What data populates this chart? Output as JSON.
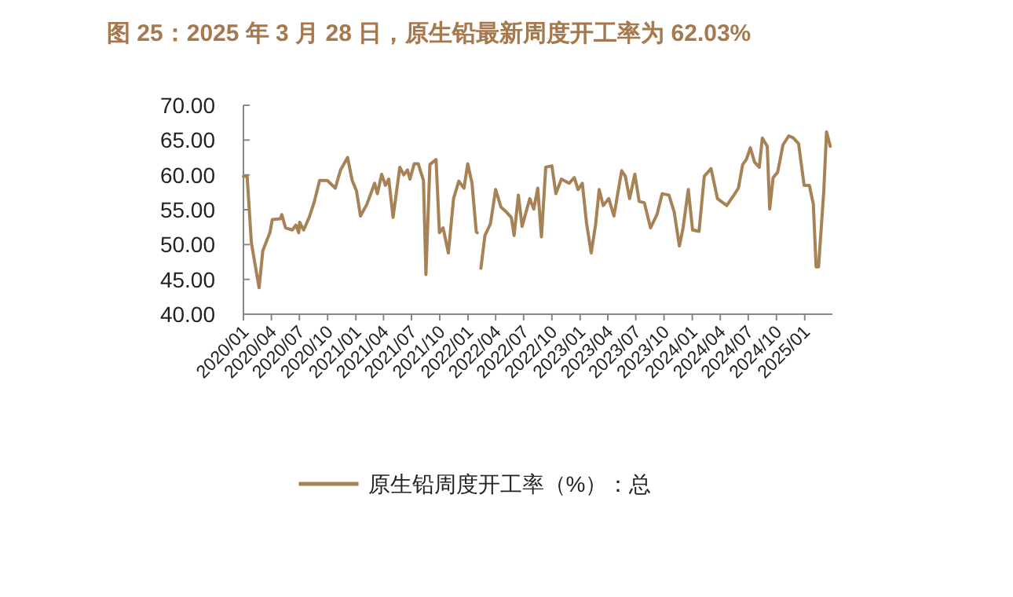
{
  "chart_data": {
    "type": "line",
    "title": "图 25：2025 年 3 月 28 日，原生铅最新周度开工率为 62.03%",
    "x": [
      "2020-01-01",
      "2020-01-13",
      "2020-01-27",
      "2020-02-21",
      "2020-03-04",
      "2020-03-27",
      "2020-04-04",
      "2020-04-30",
      "2020-05-05",
      "2020-05-17",
      "2020-06-08",
      "2020-06-20",
      "2020-06-29",
      "2020-07-02",
      "2020-07-15",
      "2020-08-02",
      "2020-08-19",
      "2020-09-05",
      "2020-09-30",
      "2020-10-26",
      "2020-11-12",
      "2020-12-05",
      "2020-12-20",
      "2021-01-03",
      "2021-01-16",
      "2021-02-06",
      "2021-03-03",
      "2021-03-12",
      "2021-03-26",
      "2021-04-07",
      "2021-04-18",
      "2021-05-02",
      "2021-05-24",
      "2021-06-06",
      "2021-06-18",
      "2021-06-26",
      "2021-07-10",
      "2021-07-23",
      "2021-08-09",
      "2021-08-17",
      "2021-08-30",
      "2021-09-19",
      "2021-09-30",
      "2021-10-12",
      "2021-10-29",
      "2021-11-15",
      "2021-12-02",
      "2021-12-19",
      "2021-12-31",
      "2022-01-14",
      "2022-01-28",
      "2022-01-31",
      "2022-02-05",
      "2022-02-12",
      "2022-02-25",
      "2022-03-15",
      "2022-04-01",
      "2022-04-18",
      "2022-05-05",
      "2022-05-22",
      "2022-05-31",
      "2022-06-14",
      "2022-06-26",
      "2022-07-21",
      "2022-08-03",
      "2022-08-16",
      "2022-08-28",
      "2022-09-11",
      "2022-10-01",
      "2022-10-14",
      "2022-11-01",
      "2022-11-26",
      "2022-12-13",
      "2022-12-25",
      "2023-01-08",
      "2023-01-22",
      "2023-02-06",
      "2023-02-20",
      "2023-03-04",
      "2023-03-17",
      "2023-04-04",
      "2023-04-21",
      "2023-05-16",
      "2023-05-28",
      "2023-06-11",
      "2023-06-28",
      "2023-07-12",
      "2023-07-29",
      "2023-08-18",
      "2023-09-08",
      "2023-09-25",
      "2023-10-17",
      "2023-11-03",
      "2023-11-20",
      "2023-12-02",
      "2023-12-19",
      "2024-01-02",
      "2024-01-23",
      "2024-02-09",
      "2024-03-02",
      "2024-03-23",
      "2024-04-22",
      "2024-05-14",
      "2024-05-30",
      "2024-06-13",
      "2024-06-25",
      "2024-07-08",
      "2024-07-22",
      "2024-08-06",
      "2024-08-16",
      "2024-09-01",
      "2024-09-09",
      "2024-09-20",
      "2024-10-05",
      "2024-10-22",
      "2024-11-10",
      "2024-11-25",
      "2024-12-12",
      "2024-12-30",
      "2025-01-16",
      "2025-01-29",
      "2025-02-07",
      "2025-02-15",
      "2025-03-04",
      "2025-03-13",
      "2025-03-25"
    ],
    "series": [
      {
        "name": "原生铅周度开工率（%）：总",
        "color": "#a88257",
        "values": [
          59.8,
          59.8,
          50.2,
          43.8,
          49.1,
          51.7,
          53.6,
          53.7,
          54.3,
          52.4,
          52.1,
          52.8,
          51.7,
          53.2,
          52.1,
          53.9,
          56.2,
          59.2,
          59.2,
          58.1,
          60.7,
          62.5,
          59.2,
          57.7,
          54.1,
          55.8,
          58.8,
          57.3,
          60.1,
          58.5,
          59.4,
          53.9,
          61.1,
          60.0,
          60.7,
          59.4,
          61.6,
          61.6,
          59.2,
          45.7,
          61.5,
          62.2,
          51.7,
          52.4,
          48.8,
          56.6,
          59.1,
          58.1,
          61.6,
          58.8,
          51.8,
          51.7,
          null,
          46.6,
          51.3,
          53.0,
          57.9,
          55.4,
          54.7,
          53.9,
          51.3,
          57.1,
          52.6,
          56.6,
          55.1,
          58.1,
          51.1,
          61.1,
          61.3,
          57.3,
          59.4,
          58.8,
          59.6,
          57.9,
          58.8,
          53.0,
          48.8,
          52.8,
          57.9,
          55.6,
          56.6,
          54.1,
          60.6,
          59.8,
          56.6,
          60.1,
          56.2,
          56.0,
          52.4,
          54.3,
          57.3,
          57.1,
          54.7,
          49.8,
          52.4,
          57.9,
          52.1,
          51.9,
          59.8,
          60.9,
          56.6,
          55.6,
          57.0,
          58.1,
          61.5,
          62.2,
          63.9,
          61.8,
          61.1,
          65.3,
          64.1,
          55.1,
          59.6,
          60.4,
          64.3,
          65.6,
          65.3,
          64.5,
          58.5,
          58.5,
          55.8,
          46.8,
          46.8,
          57.7,
          66.2,
          64.1
        ]
      }
    ],
    "xlim": [
      "2020-01-01",
      "2025-04-01"
    ],
    "xticks": [
      {
        "value": "2020-01-01",
        "label": "2020/01"
      },
      {
        "value": "2020-04-01",
        "label": "2020/04"
      },
      {
        "value": "2020-07-01",
        "label": "2020/07"
      },
      {
        "value": "2020-10-01",
        "label": "2020/10"
      },
      {
        "value": "2021-01-01",
        "label": "2021/01"
      },
      {
        "value": "2021-04-01",
        "label": "2021/04"
      },
      {
        "value": "2021-07-01",
        "label": "2021/07"
      },
      {
        "value": "2021-10-01",
        "label": "2021/10"
      },
      {
        "value": "2022-01-01",
        "label": "2022/01"
      },
      {
        "value": "2022-04-01",
        "label": "2022/04"
      },
      {
        "value": "2022-07-01",
        "label": "2022/07"
      },
      {
        "value": "2022-10-01",
        "label": "2022/10"
      },
      {
        "value": "2023-01-01",
        "label": "2023/01"
      },
      {
        "value": "2023-04-01",
        "label": "2023/04"
      },
      {
        "value": "2023-07-01",
        "label": "2023/07"
      },
      {
        "value": "2023-10-01",
        "label": "2023/10"
      },
      {
        "value": "2024-01-01",
        "label": "2024/01"
      },
      {
        "value": "2024-04-01",
        "label": "2024/04"
      },
      {
        "value": "2024-07-01",
        "label": "2024/07"
      },
      {
        "value": "2024-10-01",
        "label": "2024/10"
      },
      {
        "value": "2025-01-01",
        "label": "2025/01"
      }
    ],
    "ylim": [
      40,
      70
    ],
    "yticks": [
      {
        "value": 40,
        "label": "40.00"
      },
      {
        "value": 45,
        "label": "45.00"
      },
      {
        "value": 50,
        "label": "50.00"
      },
      {
        "value": 55,
        "label": "55.00"
      },
      {
        "value": 60,
        "label": "60.00"
      },
      {
        "value": 65,
        "label": "65.00"
      },
      {
        "value": 70,
        "label": "70.00"
      }
    ],
    "grid": false,
    "legend": "bottom"
  }
}
